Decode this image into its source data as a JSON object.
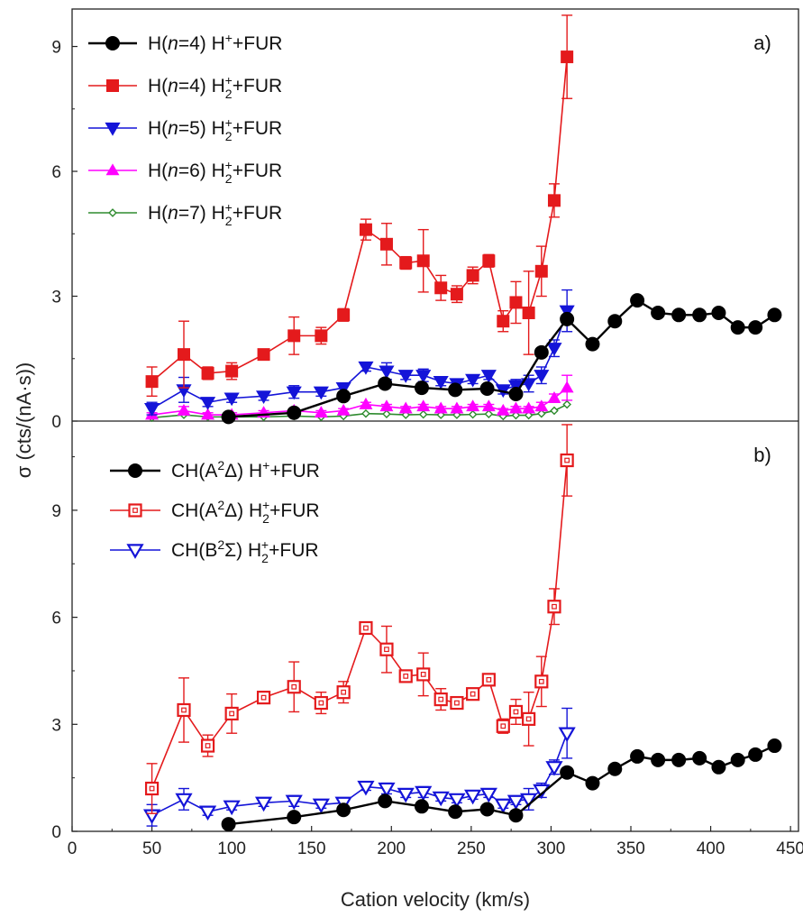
{
  "chart_data": {
    "type": "scatter",
    "xlabel": "Cation velocity (km/s)",
    "ylabel": "σ (cts/(nA·s))",
    "xlim": [
      0,
      455
    ],
    "xticks": [
      0,
      50,
      100,
      150,
      200,
      250,
      300,
      350,
      400,
      450
    ],
    "grid": false,
    "panels": [
      {
        "label": "a)",
        "ylim": [
          0,
          9.9
        ],
        "yticks": [
          0,
          3,
          6,
          9
        ],
        "legend_position": "top-left",
        "series": [
          {
            "name": "H(n=4) H⁺+FUR",
            "name_html": "H(<tspan font-style='italic'>n</tspan>=4) H<tspan class='sup' dy='-8'>+</tspan><tspan dy='8'>+FUR</tspan>",
            "color": "#000000",
            "marker": "circle",
            "filled": true,
            "x": [
              98,
              139,
              170,
              196,
              219,
              240,
              260,
              278,
              294,
              310,
              326,
              340,
              354,
              367,
              380,
              393,
              405,
              417,
              428,
              440
            ],
            "y": [
              0.1,
              0.2,
              0.6,
              0.9,
              0.8,
              0.75,
              0.78,
              0.65,
              1.65,
              2.45,
              1.85,
              2.4,
              2.9,
              2.6,
              2.55,
              2.55,
              2.6,
              2.25,
              2.25,
              2.55
            ],
            "err": null
          },
          {
            "name": "H(n=4) H₂⁺+FUR",
            "name_html": "H(<tspan font-style='italic'>n</tspan>=4) H<tspan class='sup' dy='7'>2</tspan><tspan class='sup' dx='-8' dy='-15'>+</tspan><tspan dy='8'>+FUR</tspan>",
            "color": "#e41a1c",
            "marker": "square",
            "filled": true,
            "x": [
              50,
              70,
              85,
              100,
              120,
              139,
              156,
              170,
              184,
              197,
              209,
              220,
              231,
              241,
              251,
              261,
              270,
              278,
              286,
              294,
              302,
              310
            ],
            "y": [
              0.95,
              1.6,
              1.15,
              1.2,
              1.6,
              2.05,
              2.05,
              2.55,
              4.6,
              4.25,
              3.8,
              3.85,
              3.2,
              3.05,
              3.5,
              3.85,
              2.4,
              2.85,
              2.6,
              3.6,
              5.3,
              8.75
            ],
            "err": [
              0.35,
              0.8,
              0.15,
              0.2,
              0.1,
              0.45,
              0.2,
              0.15,
              0.25,
              0.5,
              0.15,
              0.75,
              0.3,
              0.2,
              0.2,
              0.15,
              0.25,
              0.5,
              1.0,
              0.6,
              0.4,
              1.0
            ]
          },
          {
            "name": "H(n=5) H₂⁺+FUR",
            "name_html": "H(<tspan font-style='italic'>n</tspan>=5) H<tspan class='sup' dy='7'>2</tspan><tspan class='sup' dx='-8' dy='-15'>+</tspan><tspan dy='8'>+FUR</tspan>",
            "color": "#1414d8",
            "marker": "triangle-down",
            "filled": true,
            "x": [
              50,
              70,
              85,
              100,
              120,
              139,
              156,
              170,
              184,
              197,
              209,
              220,
              231,
              241,
              251,
              261,
              270,
              278,
              286,
              294,
              302,
              310
            ],
            "y": [
              0.3,
              0.75,
              0.45,
              0.55,
              0.6,
              0.7,
              0.7,
              0.8,
              1.3,
              1.2,
              1.1,
              1.1,
              0.95,
              0.9,
              1.0,
              1.1,
              0.75,
              0.85,
              0.9,
              1.1,
              1.75,
              2.65
            ],
            "err": [
              0.15,
              0.3,
              0.1,
              0.1,
              0.1,
              0.15,
              0.1,
              0.1,
              0.1,
              0.2,
              0.1,
              0.15,
              0.1,
              0.1,
              0.1,
              0.1,
              0.1,
              0.15,
              0.2,
              0.2,
              0.2,
              0.5
            ]
          },
          {
            "name": "H(n=6) H₂⁺+FUR",
            "name_html": "H(<tspan font-style='italic'>n</tspan>=6) H<tspan class='sup' dy='7'>2</tspan><tspan class='sup' dx='-8' dy='-15'>+</tspan><tspan dy='8'>+FUR</tspan>",
            "color": "#ff00ff",
            "marker": "triangle-up",
            "filled": true,
            "x": [
              50,
              70,
              85,
              100,
              120,
              139,
              156,
              170,
              184,
              197,
              209,
              220,
              231,
              241,
              251,
              261,
              270,
              278,
              286,
              294,
              302,
              310
            ],
            "y": [
              0.15,
              0.25,
              0.15,
              0.15,
              0.2,
              0.25,
              0.2,
              0.25,
              0.4,
              0.35,
              0.3,
              0.35,
              0.3,
              0.3,
              0.35,
              0.35,
              0.25,
              0.3,
              0.3,
              0.35,
              0.55,
              0.8
            ],
            "err": [
              0.05,
              0.1,
              0.05,
              0.05,
              0.05,
              0.05,
              0.05,
              0.05,
              0.05,
              0.05,
              0.05,
              0.05,
              0.05,
              0.05,
              0.05,
              0.05,
              0.05,
              0.05,
              0.05,
              0.1,
              0.1,
              0.3
            ]
          },
          {
            "name": "H(n=7) H₂⁺+FUR",
            "name_html": "H(<tspan font-style='italic'>n</tspan>=7) H<tspan class='sup' dy='7'>2</tspan><tspan class='sup' dx='-8' dy='-15'>+</tspan><tspan dy='8'>+FUR</tspan>",
            "color": "#2e8b2e",
            "marker": "diamond",
            "filled": false,
            "x": [
              50,
              70,
              85,
              100,
              120,
              139,
              156,
              170,
              184,
              197,
              209,
              220,
              231,
              241,
              251,
              261,
              270,
              278,
              286,
              294,
              302,
              310
            ],
            "y": [
              0.08,
              0.15,
              0.1,
              0.1,
              0.1,
              0.12,
              0.1,
              0.12,
              0.18,
              0.17,
              0.15,
              0.16,
              0.15,
              0.15,
              0.16,
              0.17,
              0.12,
              0.14,
              0.14,
              0.18,
              0.25,
              0.4
            ],
            "err": null
          }
        ]
      },
      {
        "label": "b)",
        "ylim": [
          0,
          11.5
        ],
        "yticks": [
          0,
          3,
          6,
          9
        ],
        "legend_position": "top-left",
        "series": [
          {
            "name": "CH(A²Δ) H⁺+FUR",
            "name_html": "CH(A<tspan class='sup' dy='-8'>2</tspan><tspan dy='8'>Δ) H</tspan><tspan class='sup' dy='-8'>+</tspan><tspan dy='8'>+FUR</tspan>",
            "color": "#000000",
            "marker": "circle",
            "filled": true,
            "x": [
              98,
              139,
              170,
              196,
              219,
              240,
              260,
              278,
              310,
              326,
              340,
              354,
              367,
              380,
              393,
              405,
              417,
              428,
              440
            ],
            "y": [
              0.2,
              0.4,
              0.6,
              0.85,
              0.7,
              0.55,
              0.62,
              0.45,
              1.65,
              1.35,
              1.75,
              2.1,
              2.0,
              2.0,
              2.05,
              1.8,
              2.0,
              2.15,
              2.4
            ],
            "err": null
          },
          {
            "name": "CH(A²Δ) H₂⁺+FUR",
            "name_html": "CH(A<tspan class='sup' dy='-8'>2</tspan><tspan dy='8'>Δ) H</tspan><tspan class='sup' dy='7'>2</tspan><tspan class='sup' dx='-8' dy='-15'>+</tspan><tspan dy='8'>+FUR</tspan>",
            "color": "#e41a1c",
            "marker": "square-open",
            "filled": false,
            "x": [
              50,
              70,
              85,
              100,
              120,
              139,
              156,
              170,
              184,
              197,
              209,
              220,
              231,
              241,
              251,
              261,
              270,
              278,
              286,
              294,
              302,
              310
            ],
            "y": [
              1.2,
              3.4,
              2.4,
              3.3,
              3.75,
              4.05,
              3.6,
              3.9,
              5.7,
              5.1,
              4.35,
              4.4,
              3.7,
              3.6,
              3.85,
              4.25,
              2.95,
              3.35,
              3.15,
              4.2,
              6.3,
              10.4
            ],
            "err": [
              0.7,
              0.9,
              0.3,
              0.55,
              0.15,
              0.7,
              0.3,
              0.3,
              0.15,
              0.65,
              0.15,
              0.6,
              0.3,
              0.15,
              0.15,
              0.15,
              0.2,
              0.35,
              0.75,
              0.7,
              0.5,
              1.0
            ]
          },
          {
            "name": "CH(B²Σ) H₂⁺+FUR",
            "name_html": "CH(B<tspan class='sup' dy='-8'>2</tspan><tspan dy='8'>Σ) H</tspan><tspan class='sup' dy='7'>2</tspan><tspan class='sup' dx='-8' dy='-15'>+</tspan><tspan dy='8'>+FUR</tspan>",
            "color": "#1414d8",
            "marker": "triangle-down-open",
            "filled": false,
            "x": [
              50,
              70,
              85,
              100,
              120,
              139,
              156,
              170,
              184,
              197,
              209,
              220,
              231,
              241,
              251,
              261,
              270,
              278,
              286,
              294,
              302,
              310
            ],
            "y": [
              0.45,
              0.9,
              0.55,
              0.7,
              0.8,
              0.85,
              0.75,
              0.8,
              1.25,
              1.2,
              1.05,
              1.1,
              0.95,
              0.9,
              1.0,
              1.05,
              0.75,
              0.85,
              0.9,
              1.15,
              1.8,
              2.75
            ],
            "err": [
              0.3,
              0.3,
              0.1,
              0.1,
              0.1,
              0.15,
              0.1,
              0.1,
              0.1,
              0.15,
              0.1,
              0.15,
              0.1,
              0.1,
              0.1,
              0.1,
              0.1,
              0.1,
              0.3,
              0.2,
              0.2,
              0.7
            ]
          }
        ]
      }
    ]
  }
}
